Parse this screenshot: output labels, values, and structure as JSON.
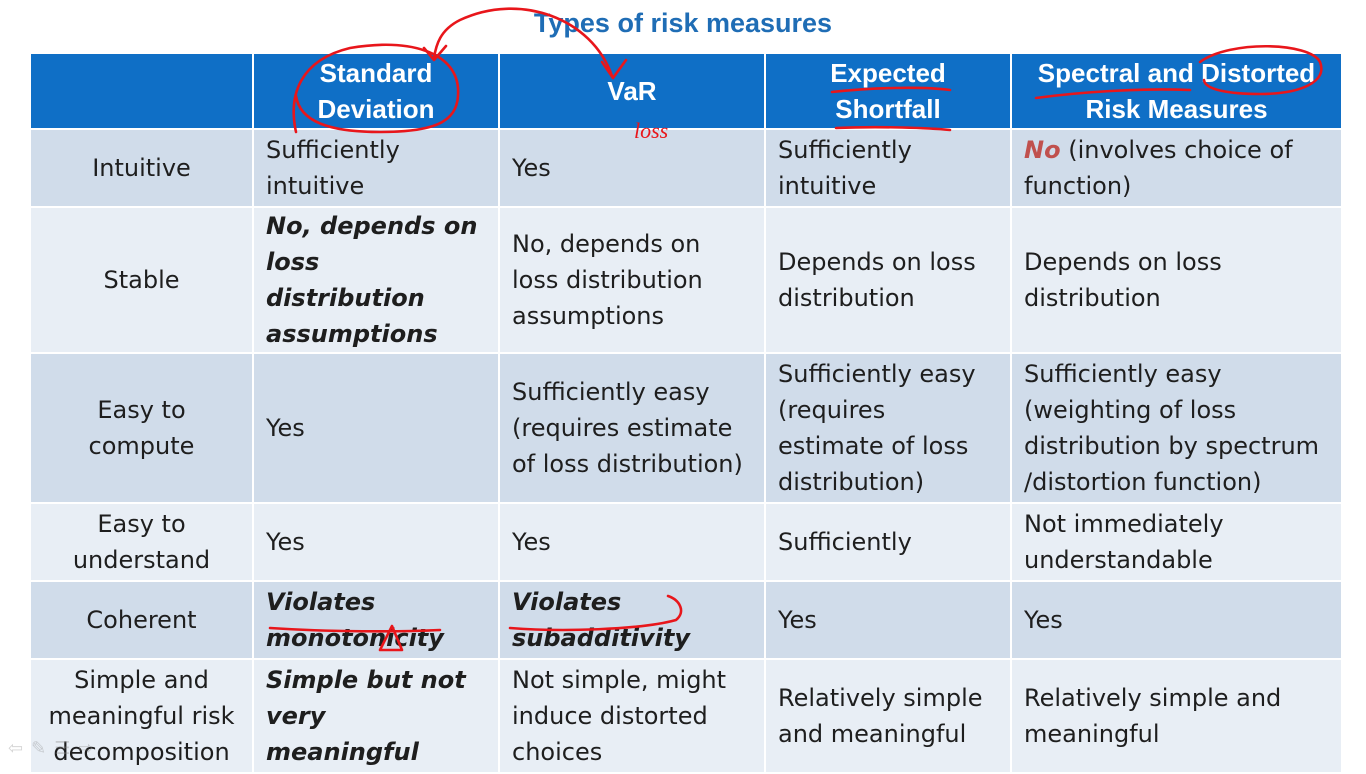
{
  "title": "Types of risk measures",
  "columns": [
    "",
    "Standard Deviation",
    "VaR",
    "Expected Shortfall",
    "Spectral and Distorted Risk Measures"
  ],
  "annotation_text": "loss",
  "rows": [
    {
      "label": "Intuitive",
      "cells": [
        {
          "text": "Sufficiently intuitive",
          "emph": false
        },
        {
          "text": "Yes",
          "emph": false
        },
        {
          "text": "Sufficiently intuitive",
          "emph": false
        },
        {
          "lead": "No",
          "text": " (involves choice of function)",
          "emph": false
        }
      ]
    },
    {
      "label": "Stable",
      "cells": [
        {
          "text": "No, depends on loss distribution assumptions",
          "emph": true
        },
        {
          "text": "No, depends on loss distribution assumptions",
          "emph": false
        },
        {
          "text": "Depends on loss distribution",
          "emph": false
        },
        {
          "text": "Depends on loss distribution",
          "emph": false
        }
      ]
    },
    {
      "label": "Easy to compute",
      "cells": [
        {
          "text": "Yes",
          "emph": false
        },
        {
          "text": "Sufficiently easy (requires estimate of loss distribution)",
          "emph": false
        },
        {
          "text": "Sufficiently easy (requires estimate of loss distribution)",
          "emph": false
        },
        {
          "text": "Sufficiently easy (weighting of loss distribution by spectrum /distortion function)",
          "emph": false
        }
      ]
    },
    {
      "label": "Easy to understand",
      "cells": [
        {
          "text": "Yes",
          "emph": false
        },
        {
          "text": "Yes",
          "emph": false
        },
        {
          "text": "Sufficiently",
          "emph": false
        },
        {
          "text": "Not immediately understandable",
          "emph": false
        }
      ]
    },
    {
      "label": "Coherent",
      "cells": [
        {
          "text": "Violates monotonicity",
          "emph": true
        },
        {
          "text": "Violates subadditivity",
          "emph": true
        },
        {
          "text": "Yes",
          "emph": false
        },
        {
          "text": "Yes",
          "emph": false
        }
      ]
    },
    {
      "label": "Simple and meaningful risk decomposition",
      "cells": [
        {
          "text": "Simple but not very meaningful",
          "emph": true
        },
        {
          "text": "Not simple, might induce distorted choices",
          "emph": false
        },
        {
          "text": "Relatively simple and meaningful",
          "emph": false
        },
        {
          "text": "Relatively simple and meaningful",
          "emph": false
        }
      ]
    }
  ],
  "colors": {
    "header_bg": "#0f6fc6",
    "title": "#1f6db5",
    "row_dark": "#d0dcea",
    "row_light": "#e8eef5",
    "emphasis": "#c0504d",
    "ink": "#e8161b"
  }
}
